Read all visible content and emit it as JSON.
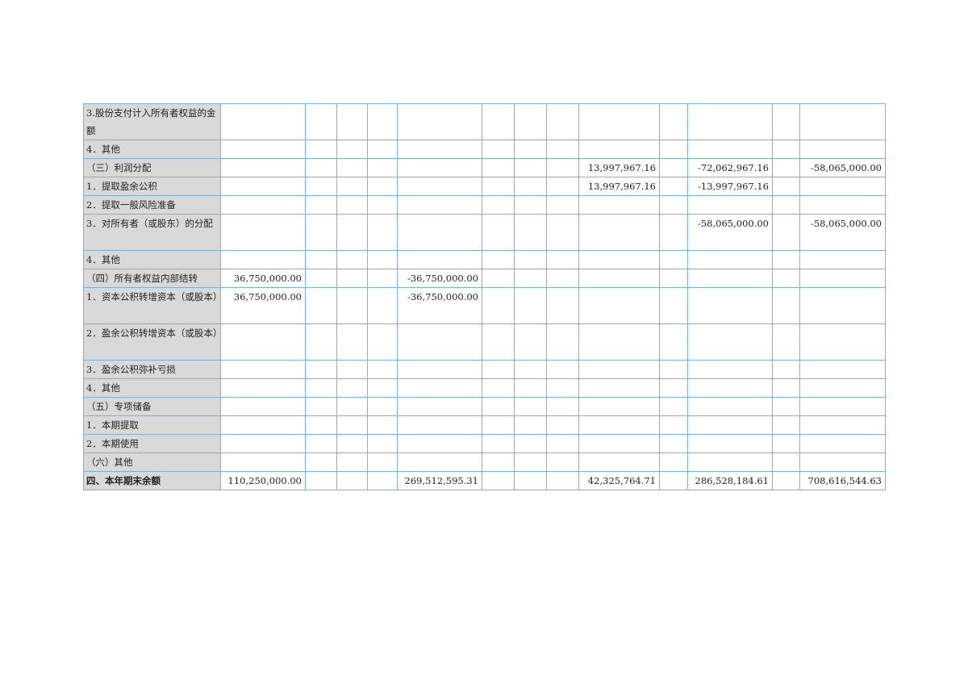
{
  "table": {
    "rows": [
      {
        "label": "3.股份支付计入所有者权益的金额",
        "tall": true,
        "cells": [
          "",
          "",
          "",
          "",
          "",
          "",
          "",
          "",
          "",
          "",
          "",
          "",
          ""
        ]
      },
      {
        "label": "4．其他",
        "cells": [
          "",
          "",
          "",
          "",
          "",
          "",
          "",
          "",
          "",
          "",
          "",
          "",
          ""
        ]
      },
      {
        "label": "（三）利润分配",
        "cells": [
          "",
          "",
          "",
          "",
          "",
          "",
          "",
          "",
          "13,997,967.16",
          "",
          "-72,062,967.16",
          "",
          "-58,065,000.00"
        ]
      },
      {
        "label": "1．提取盈余公积",
        "cells": [
          "",
          "",
          "",
          "",
          "",
          "",
          "",
          "",
          "13,997,967.16",
          "",
          "-13,997,967.16",
          "",
          ""
        ]
      },
      {
        "label": "2．提取一般风险准备",
        "cells": [
          "",
          "",
          "",
          "",
          "",
          "",
          "",
          "",
          "",
          "",
          "",
          "",
          ""
        ]
      },
      {
        "label": "3．对所有者（或股东）的分配",
        "tall": true,
        "cells": [
          "",
          "",
          "",
          "",
          "",
          "",
          "",
          "",
          "",
          "",
          "-58,065,000.00",
          "",
          "-58,065,000.00"
        ]
      },
      {
        "label": "4．其他",
        "cells": [
          "",
          "",
          "",
          "",
          "",
          "",
          "",
          "",
          "",
          "",
          "",
          "",
          ""
        ]
      },
      {
        "label": "（四）所有者权益内部结转",
        "cells": [
          "36,750,000.00",
          "",
          "",
          "",
          "-36,750,000.00",
          "",
          "",
          "",
          "",
          "",
          "",
          "",
          ""
        ]
      },
      {
        "label": "1．资本公积转增资本（或股本）",
        "tall": true,
        "cells": [
          "36,750,000.00",
          "",
          "",
          "",
          "-36,750,000.00",
          "",
          "",
          "",
          "",
          "",
          "",
          "",
          ""
        ]
      },
      {
        "label": "2．盈余公积转增资本（或股本）",
        "tall": true,
        "cells": [
          "",
          "",
          "",
          "",
          "",
          "",
          "",
          "",
          "",
          "",
          "",
          "",
          ""
        ]
      },
      {
        "label": "3．盈余公积弥补亏损",
        "cells": [
          "",
          "",
          "",
          "",
          "",
          "",
          "",
          "",
          "",
          "",
          "",
          "",
          ""
        ]
      },
      {
        "label": "4．其他",
        "cells": [
          "",
          "",
          "",
          "",
          "",
          "",
          "",
          "",
          "",
          "",
          "",
          "",
          ""
        ]
      },
      {
        "label": "（五）专项储备",
        "cells": [
          "",
          "",
          "",
          "",
          "",
          "",
          "",
          "",
          "",
          "",
          "",
          "",
          ""
        ]
      },
      {
        "label": "1．本期提取",
        "cells": [
          "",
          "",
          "",
          "",
          "",
          "",
          "",
          "",
          "",
          "",
          "",
          "",
          ""
        ]
      },
      {
        "label": "2．本期使用",
        "cells": [
          "",
          "",
          "",
          "",
          "",
          "",
          "",
          "",
          "",
          "",
          "",
          "",
          ""
        ]
      },
      {
        "label": "（六）其他",
        "cells": [
          "",
          "",
          "",
          "",
          "",
          "",
          "",
          "",
          "",
          "",
          "",
          "",
          ""
        ]
      },
      {
        "label": "四、本年期末余额",
        "total": true,
        "cells": [
          "110,250,000.00",
          "",
          "",
          "",
          "269,512,595.31",
          "",
          "",
          "",
          "42,325,764.71",
          "",
          "286,528,184.61",
          "",
          "708,616,544.63"
        ]
      }
    ]
  },
  "colors": {
    "border": "#7fb0d8",
    "label_bg": "#d9d9d9"
  }
}
